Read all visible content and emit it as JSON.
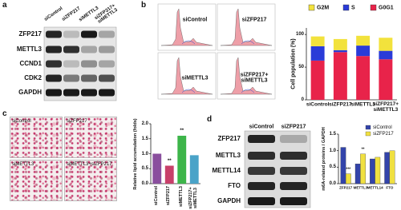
{
  "panel_labels": [
    "a",
    "b",
    "c",
    "d"
  ],
  "blot_a": {
    "columns": [
      "siControl",
      "siZFP217",
      "siMETTL3",
      "siZFP217+ siMETTL3"
    ],
    "rows": [
      "ZFP217",
      "METTL3",
      "CCND1",
      "CDK2",
      "GAPDH"
    ]
  },
  "flow": {
    "labels": [
      "siControl",
      "siZFP217",
      "siMETTL3",
      "siZFP217+ siMETTL3"
    ]
  },
  "micrographs": {
    "labels": [
      "siControl",
      "siZFP217",
      "siMETTL3",
      "siMETTL3+siZFP217"
    ]
  },
  "blot_d": {
    "columns": [
      "siControl",
      "siZFP217"
    ],
    "rows": [
      "ZFP217",
      "METTL3",
      "METTL14",
      "FTO",
      "GAPDH"
    ]
  },
  "chart_data": [
    {
      "type": "stacked_bar",
      "y_label": "Cell population (%)",
      "categories": [
        "siControl",
        "siZFP217",
        "siMETTL3",
        "siZFP217+ siMETTL3"
      ],
      "series": [
        {
          "name": "G2M",
          "color": "#f2e23c",
          "values": [
            15,
            17,
            15,
            20
          ]
        },
        {
          "name": "S",
          "color": "#2a3bd8",
          "values": [
            22,
            3,
            16,
            13
          ]
        },
        {
          "name": "G0G1",
          "color": "#e8234a",
          "values": [
            60,
            73,
            67,
            62
          ]
        }
      ],
      "ylim": [
        0,
        110
      ],
      "yticks": [
        0,
        50,
        100
      ],
      "grid": false
    },
    {
      "type": "bar",
      "y_label": "Relative lipid accumulation (folds)",
      "categories": [
        "siControl",
        "siZFP217",
        "siMETTL3",
        "siZFP217+ siMETTL3"
      ],
      "values": [
        1.0,
        0.6,
        1.6,
        0.95
      ],
      "colors": [
        "#8a4f9e",
        "#c83f6a",
        "#3db54a",
        "#4aa3c8"
      ],
      "significance": [
        null,
        "**",
        "**",
        null
      ],
      "ylim": [
        0,
        2
      ],
      "yticks": [
        {
          "value": 0,
          "label": "0.0"
        },
        0.5,
        {
          "value": 1,
          "label": "1.0"
        },
        1.5,
        {
          "value": 2,
          "label": "2.0"
        }
      ],
      "grid": false
    },
    {
      "type": "grouped_bar",
      "y_label": "m6A-related proteins / GAPDH",
      "categories": [
        "ZFP217",
        "METTL3",
        "METTL14",
        "FTO"
      ],
      "series": [
        {
          "name": "siControl",
          "color": "#3344aa",
          "values": [
            1.1,
            0.6,
            0.75,
            0.95
          ],
          "significance": [
            null,
            null,
            null,
            null
          ]
        },
        {
          "name": "siZFP217",
          "color": "#f0e040",
          "values": [
            0.3,
            0.9,
            0.8,
            1.0
          ],
          "significance": [
            "***",
            "**",
            null,
            null
          ]
        }
      ],
      "ylim": [
        0,
        1.5
      ],
      "yticks": [
        {
          "value": 0,
          "label": "0.0"
        },
        0.5,
        {
          "value": 1,
          "label": "1.0"
        },
        1.5
      ],
      "grid": false
    }
  ]
}
